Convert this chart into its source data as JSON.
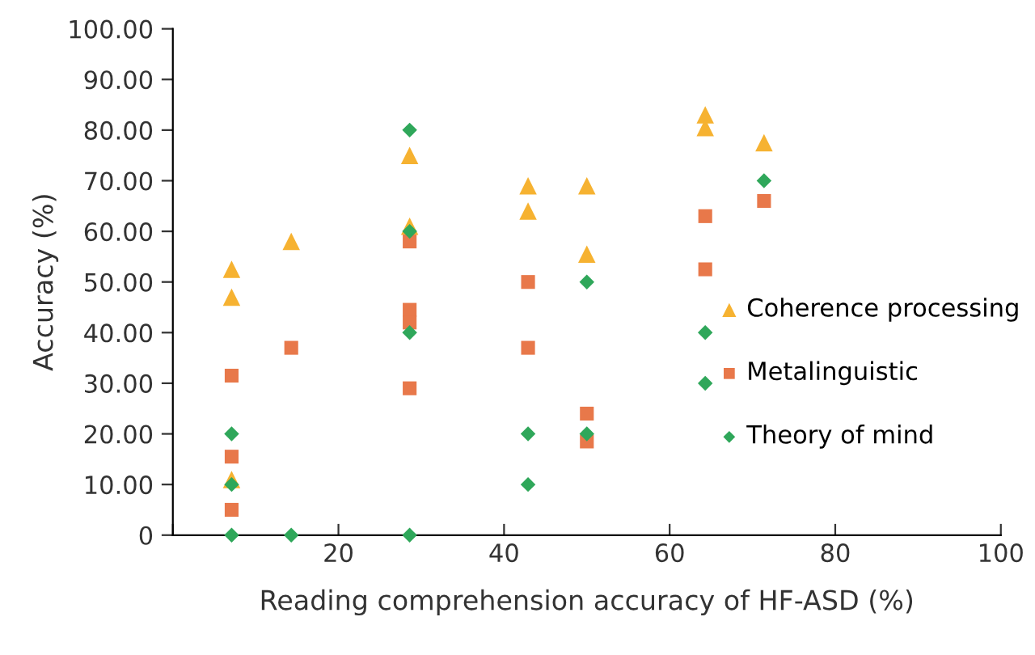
{
  "chart_data": {
    "type": "scatter",
    "xlabel": "Reading comprehension accuracy of HF-ASD (%)",
    "ylabel": "Accuracy (%)",
    "xlim": [
      0,
      100
    ],
    "xticks": [
      {
        "value": 0,
        "label": null
      },
      20,
      40,
      60,
      80,
      100
    ],
    "ylim": [
      0,
      100
    ],
    "yticks": [
      0,
      {
        "value": 10,
        "label": "10.00"
      },
      {
        "value": 20,
        "label": "20.00"
      },
      {
        "value": 30,
        "label": "30.00"
      },
      {
        "value": 40,
        "label": "40.00"
      },
      {
        "value": 50,
        "label": "50.00"
      },
      {
        "value": 60,
        "label": "60.00"
      },
      {
        "value": 70,
        "label": "70.00"
      },
      {
        "value": 80,
        "label": "80.00"
      },
      {
        "value": 90,
        "label": "90.00"
      },
      {
        "value": 100,
        "label": "100.00"
      }
    ],
    "grid": false,
    "legend": "right",
    "series": [
      {
        "name": "Coherence processing",
        "color": "#f6b231",
        "marker": "triangle",
        "x": [
          7.1,
          7.1,
          7.1,
          14.3,
          28.6,
          28.6,
          42.9,
          42.9,
          50,
          50,
          64.3,
          64.3,
          71.4
        ],
        "values": [
          52.5,
          47,
          11,
          58,
          75,
          61,
          69,
          64,
          69,
          55.5,
          83,
          80.5,
          77.5
        ]
      },
      {
        "name": "Metalinguistic",
        "color": "#e8784a",
        "marker": "square",
        "x": [
          7.1,
          7.1,
          7.1,
          14.3,
          28.6,
          28.6,
          28.6,
          28.6,
          42.9,
          42.9,
          50,
          50,
          64.3,
          64.3,
          71.4
        ],
        "values": [
          31.5,
          15.5,
          5,
          37,
          58,
          44.5,
          42,
          29,
          50,
          37,
          24,
          18.5,
          63,
          52.5,
          66
        ]
      },
      {
        "name": "Theory of mind",
        "color": "#2fa75a",
        "marker": "diamond",
        "x": [
          7.1,
          7.1,
          7.1,
          14.3,
          28.6,
          28.6,
          28.6,
          28.6,
          42.9,
          42.9,
          50,
          50,
          64.3,
          64.3,
          71.4
        ],
        "values": [
          20,
          10,
          0,
          0,
          80,
          60,
          40,
          0,
          20,
          10,
          50,
          20,
          40,
          30,
          70
        ]
      }
    ]
  }
}
